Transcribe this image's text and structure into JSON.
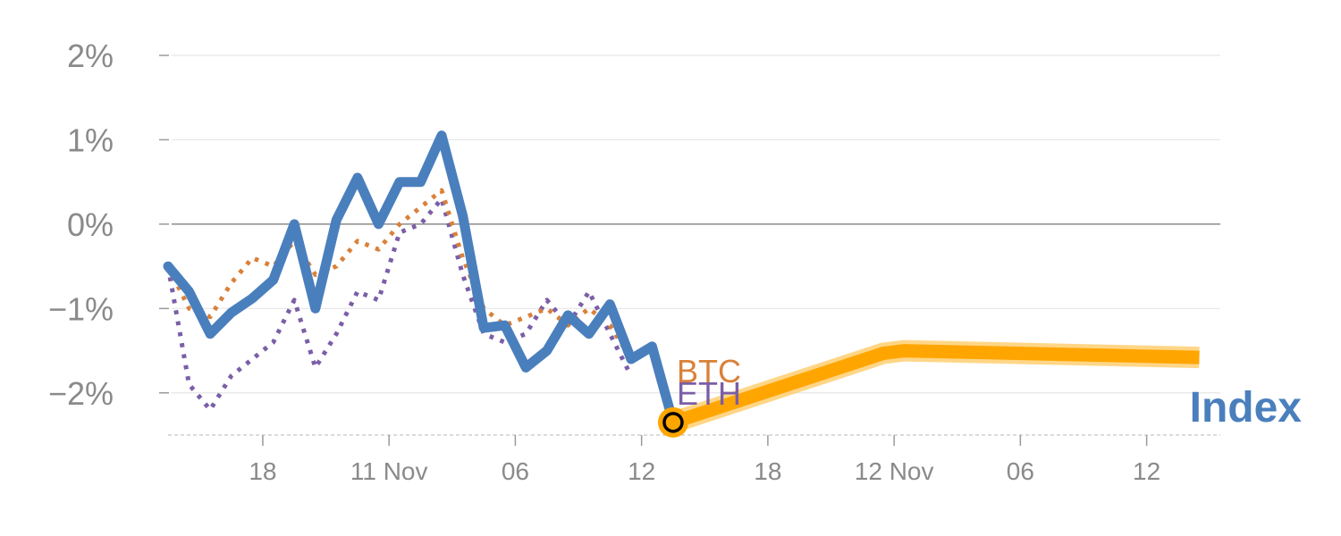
{
  "chart_data": {
    "type": "line",
    "ylim": [
      -2.5,
      2
    ],
    "yticks": [
      2,
      1,
      0,
      -1,
      -2
    ],
    "ytick_labels": [
      "2%",
      "1%",
      "0%",
      "−1%",
      "−2%"
    ],
    "x_index_range": [
      0,
      50
    ],
    "xticks": [
      {
        "x": 4.5,
        "label": "18"
      },
      {
        "x": 10.5,
        "label": "11 Nov"
      },
      {
        "x": 16.5,
        "label": "06"
      },
      {
        "x": 22.5,
        "label": "12"
      },
      {
        "x": 28.5,
        "label": "18"
      },
      {
        "x": 34.5,
        "label": "12 Nov"
      },
      {
        "x": 40.5,
        "label": "06"
      },
      {
        "x": 46.5,
        "label": "12"
      }
    ],
    "grid": true,
    "zero_line": true,
    "series": [
      {
        "name": "ETH",
        "color": "#7b5ea7",
        "style": "dotted",
        "x": [
          0,
          1,
          2,
          3,
          4,
          5,
          6,
          7,
          8,
          9,
          10,
          11,
          12,
          13,
          14,
          15,
          16,
          17,
          18,
          19,
          20,
          21,
          22,
          23,
          24
        ],
        "values": [
          -0.5,
          -1.9,
          -2.2,
          -1.8,
          -1.6,
          -1.4,
          -0.9,
          -1.7,
          -1.3,
          -0.8,
          -0.9,
          -0.1,
          0.0,
          0.3,
          -0.6,
          -1.3,
          -1.4,
          -1.3,
          -0.9,
          -1.2,
          -0.8,
          -1.3,
          -1.8,
          null,
          null
        ]
      },
      {
        "name": "BTC",
        "color": "#d9813a",
        "style": "dotted",
        "x": [
          0,
          1,
          2,
          3,
          4,
          5,
          6,
          7,
          8,
          9,
          10,
          11,
          12,
          13,
          14,
          15,
          16,
          17,
          18,
          19,
          20,
          21,
          22,
          23,
          24
        ],
        "values": [
          -0.5,
          -1.0,
          -1.1,
          -0.7,
          -0.4,
          -0.5,
          -0.2,
          -0.6,
          -0.5,
          -0.2,
          -0.3,
          0.0,
          0.2,
          0.4,
          -0.4,
          -1.0,
          -1.2,
          -1.1,
          -1.0,
          -1.2,
          -1.0,
          -1.2,
          -1.6,
          null,
          null
        ]
      },
      {
        "name": "Index",
        "color": "#4a7fbd",
        "style": "solid",
        "x": [
          0,
          1,
          2,
          3,
          4,
          5,
          6,
          7,
          8,
          9,
          10,
          11,
          12,
          13,
          14,
          15,
          16,
          17,
          18,
          19,
          20,
          21,
          22,
          23,
          24
        ],
        "values": [
          -0.5,
          -0.8,
          -1.3,
          -1.05,
          -0.88,
          -0.66,
          0.0,
          -1.0,
          0.05,
          0.55,
          0.0,
          0.5,
          0.5,
          1.05,
          0.1,
          -1.23,
          -1.2,
          -1.7,
          -1.5,
          -1.08,
          -1.3,
          -0.95,
          -1.6,
          -1.45,
          -2.35
        ]
      },
      {
        "name": "",
        "color": "#ffa500",
        "style": "projection",
        "x": [
          24,
          34,
          35,
          49
        ],
        "values": [
          -2.35,
          -1.53,
          -1.5,
          -1.58
        ]
      }
    ],
    "labels": {
      "btc": "BTC",
      "eth": "ETH",
      "index": "Index"
    },
    "marker": {
      "x": 24,
      "value": -2.35
    }
  }
}
